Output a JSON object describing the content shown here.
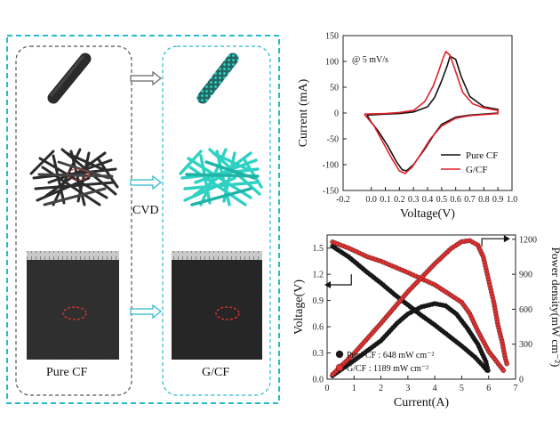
{
  "left_panel": {
    "process_label": "CVD",
    "left_column_label": "Pure CF",
    "right_column_label": "G/CF"
  },
  "colors": {
    "frame_cyan": "#29b9cf",
    "frame_gray": "#444444",
    "graphene_cyan": "#2fd1c2",
    "carbon_dark": "#2b2b2b",
    "series_black": "#111111",
    "series_red": "#e0202a",
    "marker_black": "#1a1a1a",
    "marker_red": "#e33333"
  },
  "chart_data": [
    {
      "type": "line",
      "title": "",
      "annotation": "@ 5 mV/s",
      "xlabel": "Voltage(V)",
      "ylabel": "Current (mA)",
      "xlim": [
        -0.2,
        1.0
      ],
      "ylim": [
        -150,
        150
      ],
      "xticks": [
        "-0.2",
        "0.0",
        "0.1",
        "0.2",
        "0.3",
        "0.4",
        "0.5",
        "0.6",
        "0.7",
        "0.8",
        "0.9",
        "1.0"
      ],
      "xtick_values": [
        -0.2,
        0.0,
        0.1,
        0.2,
        0.3,
        0.4,
        0.5,
        0.6,
        0.7,
        0.8,
        0.9,
        1.0
      ],
      "yticks": [
        "150",
        "100",
        "50",
        "0",
        "-50",
        "-100",
        "-150"
      ],
      "ytick_values": [
        150,
        100,
        50,
        0,
        -50,
        -100,
        -150
      ],
      "legend_position": "bottom-right",
      "series": [
        {
          "name": "Pure CF",
          "color": "#111111",
          "points": [
            [
              -0.03,
              -4
            ],
            [
              0.1,
              -2
            ],
            [
              0.2,
              -1
            ],
            [
              0.3,
              2
            ],
            [
              0.4,
              12
            ],
            [
              0.45,
              30
            ],
            [
              0.5,
              62
            ],
            [
              0.54,
              92
            ],
            [
              0.56,
              110
            ],
            [
              0.6,
              104
            ],
            [
              0.64,
              70
            ],
            [
              0.7,
              32
            ],
            [
              0.8,
              12
            ],
            [
              0.9,
              7
            ],
            [
              0.9,
              0
            ],
            [
              0.8,
              -2
            ],
            [
              0.7,
              -4
            ],
            [
              0.6,
              -8
            ],
            [
              0.5,
              -22
            ],
            [
              0.45,
              -40
            ],
            [
              0.38,
              -70
            ],
            [
              0.3,
              -100
            ],
            [
              0.25,
              -112
            ],
            [
              0.22,
              -110
            ],
            [
              0.18,
              -95
            ],
            [
              0.12,
              -65
            ],
            [
              0.05,
              -35
            ],
            [
              0.0,
              -18
            ],
            [
              -0.03,
              -4
            ]
          ]
        },
        {
          "name": "G/CF",
          "color": "#e0202a",
          "points": [
            [
              -0.05,
              -2
            ],
            [
              0.1,
              -1
            ],
            [
              0.2,
              1
            ],
            [
              0.3,
              5
            ],
            [
              0.38,
              22
            ],
            [
              0.44,
              52
            ],
            [
              0.48,
              82
            ],
            [
              0.51,
              106
            ],
            [
              0.53,
              119
            ],
            [
              0.56,
              112
            ],
            [
              0.6,
              80
            ],
            [
              0.65,
              40
            ],
            [
              0.72,
              18
            ],
            [
              0.8,
              10
            ],
            [
              0.9,
              5
            ],
            [
              0.9,
              -1
            ],
            [
              0.8,
              -3
            ],
            [
              0.7,
              -5
            ],
            [
              0.6,
              -10
            ],
            [
              0.5,
              -25
            ],
            [
              0.42,
              -50
            ],
            [
              0.35,
              -80
            ],
            [
              0.29,
              -105
            ],
            [
              0.24,
              -117
            ],
            [
              0.2,
              -112
            ],
            [
              0.15,
              -90
            ],
            [
              0.08,
              -55
            ],
            [
              0.02,
              -25
            ],
            [
              -0.05,
              -2
            ]
          ]
        }
      ]
    },
    {
      "type": "scatter",
      "title": "",
      "xlabel": "Current(A)",
      "ylabel": "Voltage(V)",
      "y2label": "Power density(mW cm⁻²)",
      "xlim": [
        0,
        7
      ],
      "ylim": [
        0,
        1.65
      ],
      "y2lim": [
        0,
        1237
      ],
      "xticks": [
        "0",
        "1",
        "2",
        "3",
        "4",
        "5",
        "6",
        "7"
      ],
      "xtick_values": [
        0,
        1,
        2,
        3,
        4,
        5,
        6,
        7
      ],
      "yticks": [
        "0.0",
        "0.3",
        "0.6",
        "0.9",
        "1.2",
        "1.5"
      ],
      "ytick_values": [
        0.0,
        0.3,
        0.6,
        0.9,
        1.2,
        1.5
      ],
      "y2ticks": [
        "0",
        "300",
        "600",
        "900",
        "1200"
      ],
      "y2tick_values": [
        0,
        300,
        600,
        900,
        1200
      ],
      "legend_position": "bottom-left",
      "legend": [
        "Pure CF : 648 mW cm⁻²",
        "G/CF : 1189 mW cm⁻²"
      ],
      "series": [
        {
          "name": "Pure CF voltage",
          "axis": "left",
          "color": "#1a1a1a",
          "points": [
            [
              0.2,
              1.52
            ],
            [
              0.8,
              1.4
            ],
            [
              1.5,
              1.22
            ],
            [
              2.0,
              1.1
            ],
            [
              2.5,
              0.97
            ],
            [
              3.0,
              0.85
            ],
            [
              3.5,
              0.73
            ],
            [
              4.0,
              0.62
            ],
            [
              4.5,
              0.5
            ],
            [
              5.0,
              0.38
            ],
            [
              5.5,
              0.25
            ],
            [
              5.8,
              0.15
            ],
            [
              6.0,
              0.08
            ]
          ]
        },
        {
          "name": "G/CF voltage",
          "axis": "left",
          "color": "#e33333",
          "points": [
            [
              0.2,
              1.57
            ],
            [
              0.8,
              1.5
            ],
            [
              1.5,
              1.4
            ],
            [
              2.0,
              1.35
            ],
            [
              3.0,
              1.22
            ],
            [
              4.0,
              1.08
            ],
            [
              4.5,
              0.98
            ],
            [
              5.0,
              0.88
            ],
            [
              5.3,
              0.75
            ],
            [
              5.6,
              0.55
            ],
            [
              6.0,
              0.32
            ],
            [
              6.3,
              0.2
            ],
            [
              6.5,
              0.12
            ],
            [
              6.6,
              0.08
            ]
          ]
        },
        {
          "name": "Pure CF power",
          "axis": "right",
          "color": "#1a1a1a",
          "points": [
            [
              0.2,
              30
            ],
            [
              1.0,
              160
            ],
            [
              2.0,
              330
            ],
            [
              2.6,
              480
            ],
            [
              3.0,
              560
            ],
            [
              3.5,
              620
            ],
            [
              4.0,
              648
            ],
            [
              4.4,
              630
            ],
            [
              4.8,
              560
            ],
            [
              5.2,
              440
            ],
            [
              5.6,
              300
            ],
            [
              5.9,
              150
            ],
            [
              6.0,
              50
            ]
          ]
        },
        {
          "name": "G/CF power",
          "axis": "right",
          "color": "#e33333",
          "points": [
            [
              0.2,
              40
            ],
            [
              1.0,
              220
            ],
            [
              2.0,
              480
            ],
            [
              3.0,
              750
            ],
            [
              4.0,
              990
            ],
            [
              4.6,
              1120
            ],
            [
              5.0,
              1180
            ],
            [
              5.3,
              1189
            ],
            [
              5.6,
              1150
            ],
            [
              5.8,
              1050
            ],
            [
              6.0,
              850
            ],
            [
              6.2,
              650
            ],
            [
              6.35,
              460
            ],
            [
              6.5,
              320
            ],
            [
              6.6,
              200
            ],
            [
              6.7,
              110
            ]
          ]
        }
      ]
    }
  ]
}
